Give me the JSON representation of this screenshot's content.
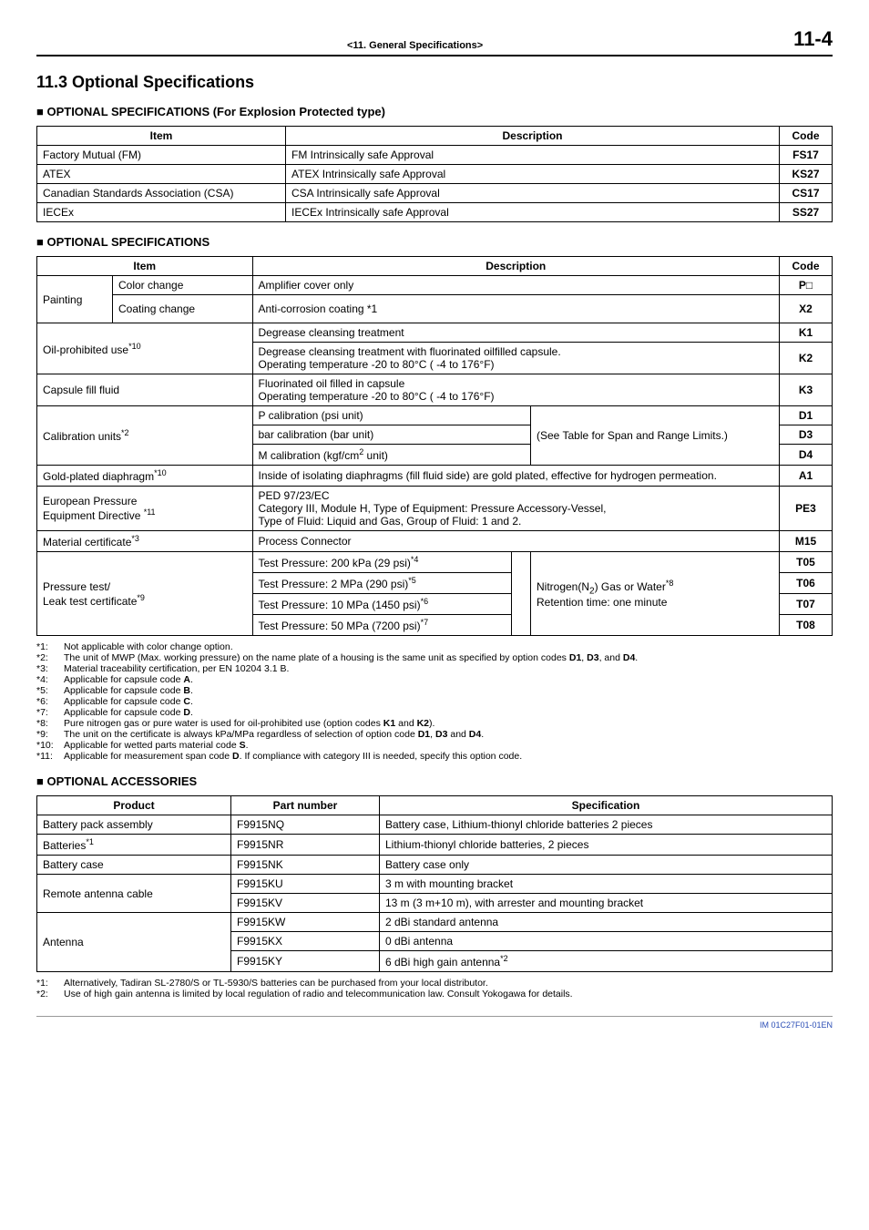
{
  "header": {
    "section": "<11.  General Specifications>",
    "page": "11-4"
  },
  "title": "11.3  Optional Specifications",
  "explosion": {
    "heading": "OPTIONAL SPECIFICATIONS (For Explosion Protected type)",
    "cols": [
      "Item",
      "Description",
      "Code"
    ],
    "rows": [
      {
        "item": "Factory Mutual (FM)",
        "desc": "FM Intrinsically safe Approval",
        "code": "FS17"
      },
      {
        "item": "ATEX",
        "desc": "ATEX Intrinsically safe Approval",
        "code": "KS27"
      },
      {
        "item": "Canadian Standards Association (CSA)",
        "desc": "CSA Intrinsically safe Approval",
        "code": "CS17"
      },
      {
        "item": "IECEx",
        "desc": "IECEx Intrinsically safe Approval",
        "code": "SS27"
      }
    ]
  },
  "optional": {
    "heading": "OPTIONAL SPECIFICATIONS",
    "cols": [
      "Item",
      "Description",
      "Code"
    ],
    "painting_label": "Painting",
    "painting_color_change": "Color change",
    "painting_color_change_desc": "Amplifier cover only",
    "painting_color_change_code": "P□",
    "painting_coating_change": "Coating change",
    "painting_coating_change_desc": "Anti-corrosion coating *1",
    "painting_coating_change_code": "X2",
    "oil_label": "Oil-prohibited use*10",
    "oil_row1_desc": "Degrease cleansing treatment",
    "oil_row1_code": "K1",
    "oil_row2_desc": "Degrease cleansing treatment with fluorinated oilfilled capsule.\nOperating temperature -20 to 80°C ( -4 to 176°F)",
    "oil_row2_code": "K2",
    "capsule_label": "Capsule fill fluid",
    "capsule_desc": "Fluorinated oil filled in capsule\nOperating temperature -20 to 80°C ( -4 to 176°F)",
    "capsule_code": "K3",
    "calib_label": "Calibration units*2",
    "calib_row1_desc": "P calibration (psi unit)",
    "calib_row1_code": "D1",
    "calib_row2_desc": "bar calibration (bar unit)",
    "calib_row2_code": "D3",
    "calib_row3_desc": "M calibration (kgf/cm2 unit)",
    "calib_row3_code": "D4",
    "calib_note": "(See Table for Span and Range Limits.)",
    "gold_label": "Gold-plated diaphragm*10",
    "gold_desc": "Inside of isolating diaphragms (fill fluid side) are gold plated, effective for hydrogen permeation.",
    "gold_code": "A1",
    "ped_label": "European Pressure Equipment Directive *11",
    "ped_desc": "PED 97/23/EC\nCategory III, Module H, Type of Equipment: Pressure Accessory-Vessel,\nType of Fluid: Liquid and Gas, Group of Fluid: 1 and 2.",
    "ped_code": "PE3",
    "material_label": "Material certificate*3",
    "material_desc": "Process Connector",
    "material_code": "M15",
    "leak_label": "Pressure test/\nLeak test certificate*9",
    "leak_note": "Nitrogen(N2) Gas or Water*8\nRetention time: one minute",
    "leak_row1_desc": "Test Pressure: 200 kPa (29 psi)*4",
    "leak_row1_code": "T05",
    "leak_row2_desc": "Test Pressure: 2 MPa (290 psi)*5",
    "leak_row2_code": "T06",
    "leak_row3_desc": "Test Pressure: 10 MPa (1450 psi)*6",
    "leak_row3_code": "T07",
    "leak_row4_desc": "Test Pressure: 50 MPa (7200 psi)*7",
    "leak_row4_code": "T08"
  },
  "footnotes1": [
    {
      "k": "*1:",
      "t": "Not applicable with color change option."
    },
    {
      "k": "*2:",
      "t": "The unit of MWP (Max. working pressure) on the name plate of a housing is the same unit as specified by option codes D1, D3, and D4."
    },
    {
      "k": "*3:",
      "t": "Material traceability certification, per EN 10204 3.1 B."
    },
    {
      "k": "*4:",
      "t": "Applicable for capsule code A."
    },
    {
      "k": "*5:",
      "t": "Applicable for capsule code B."
    },
    {
      "k": "*6:",
      "t": "Applicable for capsule code C."
    },
    {
      "k": "*7:",
      "t": "Applicable for capsule code D."
    },
    {
      "k": "*8:",
      "t": "Pure nitrogen gas or pure water is used for oil-prohibited use (option codes K1 and K2)."
    },
    {
      "k": "*9:",
      "t": "The unit on the certificate is always kPa/MPa regardless of selection of option code D1, D3 and D4."
    },
    {
      "k": "*10:",
      "t": "Applicable for wetted parts material code S."
    },
    {
      "k": "*11:",
      "t": "Applicable for measurement span code D. If compliance with category III is needed, specify this option code."
    }
  ],
  "accessories": {
    "heading": "OPTIONAL ACCESSORIES",
    "cols": [
      "Product",
      "Part number",
      "Specification"
    ],
    "rows": [
      {
        "p": "Battery pack assembly",
        "n": "F9915NQ",
        "s": "Battery case, Lithium-thionyl chloride batteries 2 pieces"
      },
      {
        "p": "Batteries*1",
        "n": "F9915NR",
        "s": "Lithium-thionyl chloride batteries, 2 pieces"
      },
      {
        "p": "Battery case",
        "n": "F9915NK",
        "s": "Battery case only"
      },
      {
        "p": "Remote antenna cable",
        "n": "F9915KU",
        "s": "3 m with mounting bracket",
        "rowspan": 2
      },
      {
        "p": "",
        "n": "F9915KV",
        "s": "13 m (3 m+10 m), with arrester and mounting bracket"
      },
      {
        "p": "Antenna",
        "n": "F9915KW",
        "s": "2 dBi standard antenna",
        "rowspan": 3
      },
      {
        "p": "",
        "n": "F9915KX",
        "s": "0 dBi antenna"
      },
      {
        "p": "",
        "n": "F9915KY",
        "s": "6 dBi high gain antenna*2"
      }
    ]
  },
  "footnotes2": [
    {
      "k": "*1:",
      "t": "Alternatively, Tadiran SL-2780/S or TL-5930/S batteries can be purchased from your local distributor."
    },
    {
      "k": "*2:",
      "t": "Use of high gain antenna is limited by local regulation of radio and telecommunication law. Consult Yokogawa for details."
    }
  ],
  "doc_id": "IM 01C27F01-01EN"
}
